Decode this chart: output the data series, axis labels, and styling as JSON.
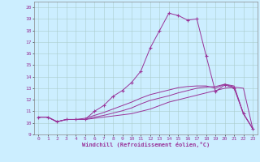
{
  "xlabel": "Windchill (Refroidissement éolien,°C)",
  "background_color": "#cceeff",
  "grid_color": "#aacccc",
  "line_color": "#993399",
  "xlim": [
    -0.5,
    23.5
  ],
  "ylim": [
    9,
    20.5
  ],
  "xticks": [
    0,
    1,
    2,
    3,
    4,
    5,
    6,
    7,
    8,
    9,
    10,
    11,
    12,
    13,
    14,
    15,
    16,
    17,
    18,
    19,
    20,
    21,
    22,
    23
  ],
  "yticks": [
    9,
    10,
    11,
    12,
    13,
    14,
    15,
    16,
    17,
    18,
    19,
    20
  ],
  "series": [
    {
      "x": [
        0,
        1,
        2,
        3,
        4,
        5,
        6,
        7,
        8,
        9,
        10,
        11,
        12,
        13,
        14,
        15,
        16,
        17,
        18,
        19,
        20,
        21,
        22,
        23
      ],
      "y": [
        10.5,
        10.5,
        10.1,
        10.3,
        10.3,
        10.3,
        11.0,
        11.5,
        12.3,
        12.8,
        13.5,
        14.5,
        16.5,
        18.0,
        19.5,
        19.3,
        18.9,
        19.0,
        15.8,
        12.7,
        13.3,
        13.0,
        10.8,
        9.5
      ],
      "marker": true
    },
    {
      "x": [
        0,
        1,
        2,
        3,
        4,
        5,
        6,
        7,
        8,
        9,
        10,
        11,
        12,
        13,
        14,
        15,
        16,
        17,
        18,
        19,
        20,
        21,
        22,
        23
      ],
      "y": [
        10.5,
        10.5,
        10.1,
        10.3,
        10.3,
        10.3,
        10.4,
        10.5,
        10.6,
        10.7,
        10.8,
        11.0,
        11.2,
        11.5,
        11.8,
        12.0,
        12.2,
        12.4,
        12.6,
        12.8,
        13.0,
        13.1,
        13.0,
        9.5
      ],
      "marker": false
    },
    {
      "x": [
        0,
        1,
        2,
        3,
        4,
        5,
        6,
        7,
        8,
        9,
        10,
        11,
        12,
        13,
        14,
        15,
        16,
        17,
        18,
        19,
        20,
        21,
        22,
        23
      ],
      "y": [
        10.5,
        10.5,
        10.1,
        10.3,
        10.3,
        10.3,
        10.5,
        10.65,
        10.85,
        11.05,
        11.3,
        11.65,
        11.95,
        12.15,
        12.35,
        12.6,
        12.8,
        13.0,
        13.1,
        13.15,
        13.35,
        13.2,
        10.8,
        9.5
      ],
      "marker": false
    },
    {
      "x": [
        0,
        1,
        2,
        3,
        4,
        5,
        6,
        7,
        8,
        9,
        10,
        11,
        12,
        13,
        14,
        15,
        16,
        17,
        18,
        19,
        20,
        21,
        22,
        23
      ],
      "y": [
        10.5,
        10.5,
        10.1,
        10.3,
        10.3,
        10.4,
        10.65,
        10.9,
        11.2,
        11.5,
        11.8,
        12.15,
        12.45,
        12.65,
        12.85,
        13.05,
        13.15,
        13.2,
        13.2,
        13.0,
        13.35,
        13.1,
        10.8,
        9.5
      ],
      "marker": false
    }
  ]
}
